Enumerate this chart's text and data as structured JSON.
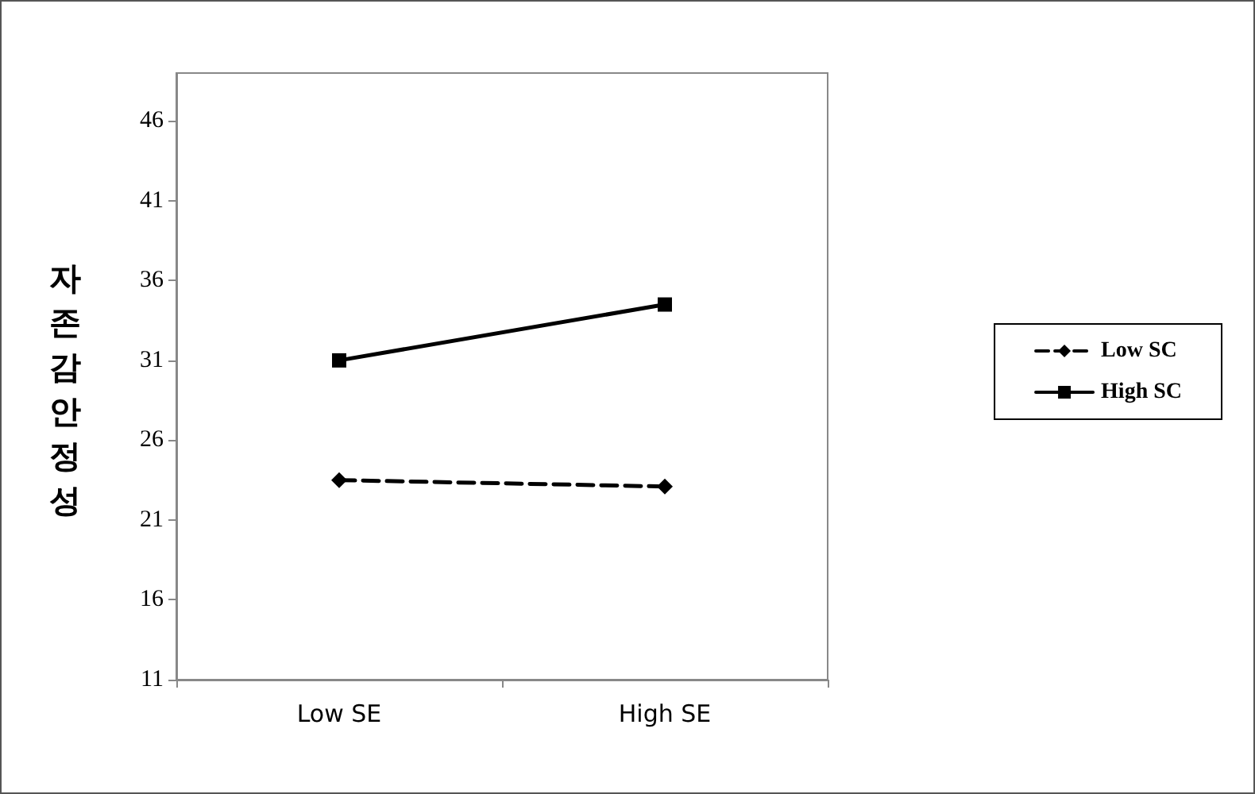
{
  "chart_data": {
    "type": "line",
    "ylabel": "자존감 안정성",
    "categories": [
      "Low SE",
      "High SE"
    ],
    "series": [
      {
        "name": "Low SC",
        "color": "#000000",
        "values": [
          23.5,
          23.1
        ],
        "marker": "diamond",
        "line_style": "dashed"
      },
      {
        "name": "High SC",
        "color": "#000000",
        "values": [
          31.0,
          34.5
        ],
        "marker": "square",
        "line_style": "solid"
      }
    ],
    "ylim": [
      11,
      49
    ],
    "yticks": [
      11,
      16,
      21,
      26,
      31,
      36,
      41,
      46
    ],
    "grid": false,
    "legend": "right"
  }
}
